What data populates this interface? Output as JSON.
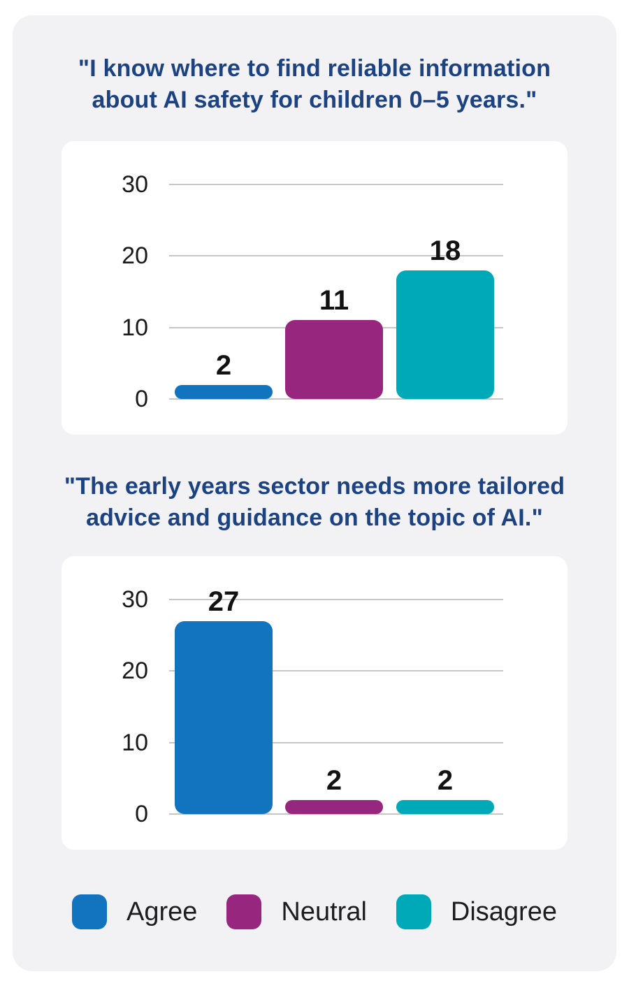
{
  "style": {
    "panel_bg": "#f2f2f4",
    "card_bg": "#ffffff",
    "title_color": "#1c4282",
    "gridline_color": "#c6c6c8",
    "tick_color": "#1a1a1a",
    "value_label_color": "#121212",
    "agree_color": "#1273be",
    "neutral_color": "#97267f",
    "disagree_color": "#00a9b7"
  },
  "chart_data": [
    {
      "type": "bar",
      "title": "\"I know where to find reliable information about AI safety for children 0–5 years.\"",
      "title_lines": [
        "\"I know where to find reliable information",
        "about AI safety for children 0–5 years.\""
      ],
      "categories": [
        "Agree",
        "Neutral",
        "Disagree"
      ],
      "values": [
        2,
        11,
        18
      ],
      "colors": [
        "#1273be",
        "#97267f",
        "#00a9b7"
      ],
      "yticks": [
        0,
        10,
        20,
        30
      ],
      "ylim": [
        0,
        30
      ],
      "xlabel": "",
      "ylabel": "",
      "grid": true,
      "value_labels": true,
      "legend_position": "shared-bottom"
    },
    {
      "type": "bar",
      "title": "\"The early years sector needs more tailored advice and guidance on the topic of AI.\"",
      "title_lines": [
        "\"The early years sector needs more tailored",
        "advice and guidance on the topic of AI.\""
      ],
      "categories": [
        "Agree",
        "Neutral",
        "Disagree"
      ],
      "values": [
        27,
        2,
        2
      ],
      "colors": [
        "#1273be",
        "#97267f",
        "#00a9b7"
      ],
      "yticks": [
        0,
        10,
        20,
        30
      ],
      "ylim": [
        0,
        30
      ],
      "xlabel": "",
      "ylabel": "",
      "grid": true,
      "value_labels": true,
      "legend_position": "shared-bottom"
    }
  ],
  "legend": {
    "items": [
      {
        "label": "Agree",
        "color": "#1273be"
      },
      {
        "label": "Neutral",
        "color": "#97267f"
      },
      {
        "label": "Disagree",
        "color": "#00a9b7"
      }
    ]
  }
}
